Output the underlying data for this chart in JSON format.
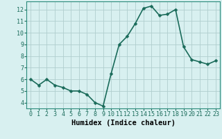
{
  "x": [
    0,
    1,
    2,
    3,
    4,
    5,
    6,
    7,
    8,
    9,
    10,
    11,
    12,
    13,
    14,
    15,
    16,
    17,
    18,
    19,
    20,
    21,
    22,
    23
  ],
  "y": [
    6.0,
    5.5,
    6.0,
    5.5,
    5.3,
    5.0,
    5.0,
    4.7,
    4.0,
    3.7,
    6.5,
    9.0,
    9.7,
    10.8,
    12.1,
    12.3,
    11.5,
    11.6,
    12.0,
    8.8,
    7.7,
    7.5,
    7.3,
    7.6
  ],
  "xlabel": "Humidex (Indice chaleur)",
  "ylim": [
    3.5,
    12.7
  ],
  "xlim": [
    -0.5,
    23.5
  ],
  "yticks": [
    4,
    5,
    6,
    7,
    8,
    9,
    10,
    11,
    12
  ],
  "xticks": [
    0,
    1,
    2,
    3,
    4,
    5,
    6,
    7,
    8,
    9,
    10,
    11,
    12,
    13,
    14,
    15,
    16,
    17,
    18,
    19,
    20,
    21,
    22,
    23
  ],
  "line_color": "#1a6b5a",
  "marker_color": "#1a6b5a",
  "bg_color": "#d8f0f0",
  "grid_color": "#b0cece",
  "tick_label_color": "#1a6b5a",
  "xlabel_color": "#000000",
  "xlabel_fontsize": 7.5,
  "tick_fontsize": 6.0,
  "line_width": 1.2,
  "marker_size": 2.5
}
